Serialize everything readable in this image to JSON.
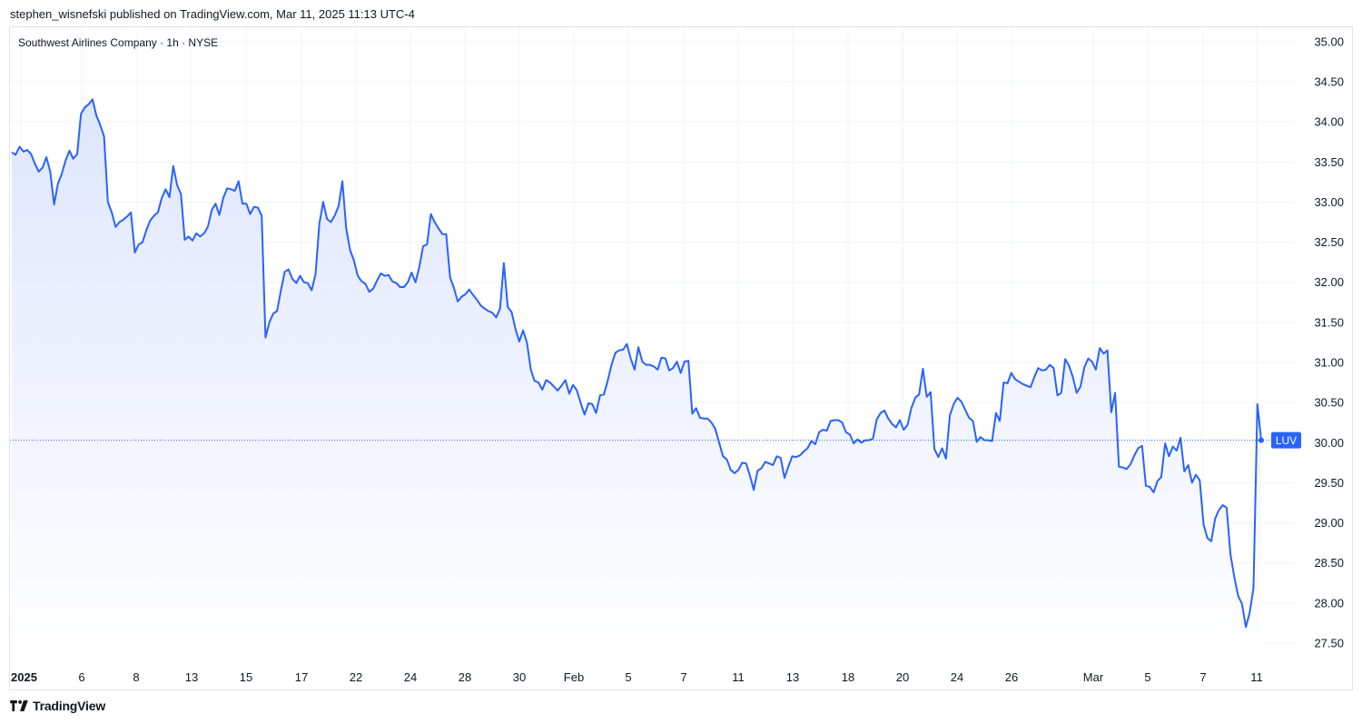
{
  "header": {
    "published_text": "stephen_wisnefski published on TradingView.com, Mar 11, 2025 11:13 UTC-4"
  },
  "footer": {
    "brand": "TradingView",
    "logo_icon": "tradingview-logo-icon"
  },
  "colors": {
    "line": "#2962ff",
    "fill_top": "#dfe6fd",
    "fill_bottom": "#ffffff",
    "grid": "#f0f3fa",
    "badge": "#2962ff"
  },
  "chart_data": {
    "type": "area",
    "title": "Southwest Airlines Company · 1h · NYSE",
    "series": [
      {
        "name": "LUV",
        "values": [
          33.62,
          33.59,
          33.69,
          33.63,
          33.65,
          33.6,
          33.48,
          33.38,
          33.43,
          33.56,
          33.38,
          32.97,
          33.23,
          33.35,
          33.52,
          33.64,
          33.54,
          33.6,
          34.1,
          34.18,
          34.22,
          34.28,
          34.08,
          33.96,
          33.82,
          33.0,
          32.87,
          32.69,
          32.75,
          32.78,
          32.82,
          32.87,
          32.37,
          32.47,
          32.5,
          32.65,
          32.77,
          32.83,
          32.87,
          33.05,
          33.16,
          33.06,
          33.45,
          33.21,
          33.1,
          32.53,
          32.57,
          32.52,
          32.61,
          32.57,
          32.61,
          32.69,
          32.9,
          32.98,
          32.84,
          33.05,
          33.17,
          33.16,
          33.14,
          33.26,
          32.98,
          32.98,
          32.85,
          32.94,
          32.93,
          32.83,
          31.31,
          31.5,
          31.61,
          31.64,
          31.9,
          32.13,
          32.16,
          32.04,
          31.99,
          32.08,
          32.0,
          31.99,
          31.9,
          32.1,
          32.73,
          33.0,
          32.79,
          32.75,
          32.83,
          32.95,
          33.26,
          32.67,
          32.4,
          32.27,
          32.08,
          32.01,
          31.98,
          31.88,
          31.92,
          32.02,
          32.11,
          32.08,
          32.09,
          32.01,
          31.99,
          31.94,
          31.94,
          32.0,
          32.12,
          32.0,
          32.19,
          32.45,
          32.47,
          32.85,
          32.75,
          32.67,
          32.6,
          32.6,
          32.06,
          31.93,
          31.76,
          31.82,
          31.85,
          31.91,
          31.84,
          31.78,
          31.71,
          31.67,
          31.64,
          31.62,
          31.56,
          31.67,
          32.24,
          31.69,
          31.63,
          31.42,
          31.26,
          31.4,
          31.25,
          30.91,
          30.77,
          30.75,
          30.66,
          30.78,
          30.75,
          30.7,
          30.65,
          30.71,
          30.78,
          30.61,
          30.72,
          30.65,
          30.49,
          30.35,
          30.49,
          30.48,
          30.37,
          30.59,
          30.6,
          30.77,
          30.97,
          31.12,
          31.15,
          31.16,
          31.23,
          31.05,
          30.91,
          31.19,
          31.01,
          30.97,
          30.97,
          30.95,
          30.91,
          31.06,
          31.05,
          30.9,
          30.93,
          31.01,
          30.87,
          31.01,
          31.02,
          30.36,
          30.43,
          30.31,
          30.3,
          30.3,
          30.25,
          30.17,
          30.0,
          29.83,
          29.79,
          29.66,
          29.62,
          29.66,
          29.75,
          29.74,
          29.59,
          29.41,
          29.65,
          29.68,
          29.76,
          29.74,
          29.72,
          29.83,
          29.81,
          29.56,
          29.7,
          29.83,
          29.82,
          29.84,
          29.89,
          29.93,
          30.02,
          29.98,
          30.13,
          30.16,
          30.15,
          30.27,
          30.28,
          30.28,
          30.25,
          30.13,
          30.1,
          29.99,
          30.04,
          30.0,
          30.03,
          30.03,
          30.05,
          30.29,
          30.37,
          30.4,
          30.3,
          30.23,
          30.19,
          30.28,
          30.16,
          30.22,
          30.43,
          30.56,
          30.6,
          30.92,
          30.57,
          30.63,
          29.92,
          29.82,
          29.93,
          29.8,
          30.34,
          30.48,
          30.56,
          30.51,
          30.41,
          30.31,
          30.27,
          30.01,
          30.07,
          30.03,
          30.03,
          30.02,
          30.37,
          30.27,
          30.75,
          30.74,
          30.87,
          30.79,
          30.76,
          30.73,
          30.71,
          30.69,
          30.82,
          30.93,
          30.9,
          30.91,
          30.97,
          30.93,
          30.59,
          30.62,
          31.04,
          30.96,
          30.82,
          30.62,
          30.7,
          30.94,
          31.05,
          31.01,
          30.91,
          31.18,
          31.11,
          31.15,
          30.38,
          30.62,
          29.7,
          29.69,
          29.67,
          29.73,
          29.84,
          29.93,
          29.96,
          29.46,
          29.45,
          29.38,
          29.52,
          29.57,
          29.99,
          29.83,
          29.95,
          29.9,
          30.06,
          29.64,
          29.72,
          29.5,
          29.6,
          29.53,
          28.98,
          28.81,
          28.77,
          29.05,
          29.16,
          29.22,
          29.19,
          28.61,
          28.32,
          28.09,
          27.99,
          27.7,
          27.88,
          28.19,
          30.48,
          30.03
        ]
      }
    ],
    "y_axis": {
      "range": [
        27.25,
        35.18
      ],
      "tick_labels": [
        "27.50",
        "28.00",
        "28.50",
        "29.00",
        "29.50",
        "30.00",
        "30.50",
        "31.00",
        "31.50",
        "32.00",
        "32.50",
        "33.00",
        "33.50",
        "34.00",
        "34.50",
        "35.00"
      ],
      "position": "right"
    },
    "x_axis": {
      "tick_labels": [
        "2025",
        "6",
        "8",
        "13",
        "15",
        "17",
        "22",
        "24",
        "28",
        "30",
        "Feb",
        "5",
        "7",
        "11",
        "13",
        "18",
        "20",
        "24",
        "26",
        "Mar",
        "5",
        "7",
        "11"
      ],
      "bold_labels": [
        "2025"
      ]
    },
    "last_price": 30.03,
    "last_label": "LUV",
    "grid": true
  }
}
